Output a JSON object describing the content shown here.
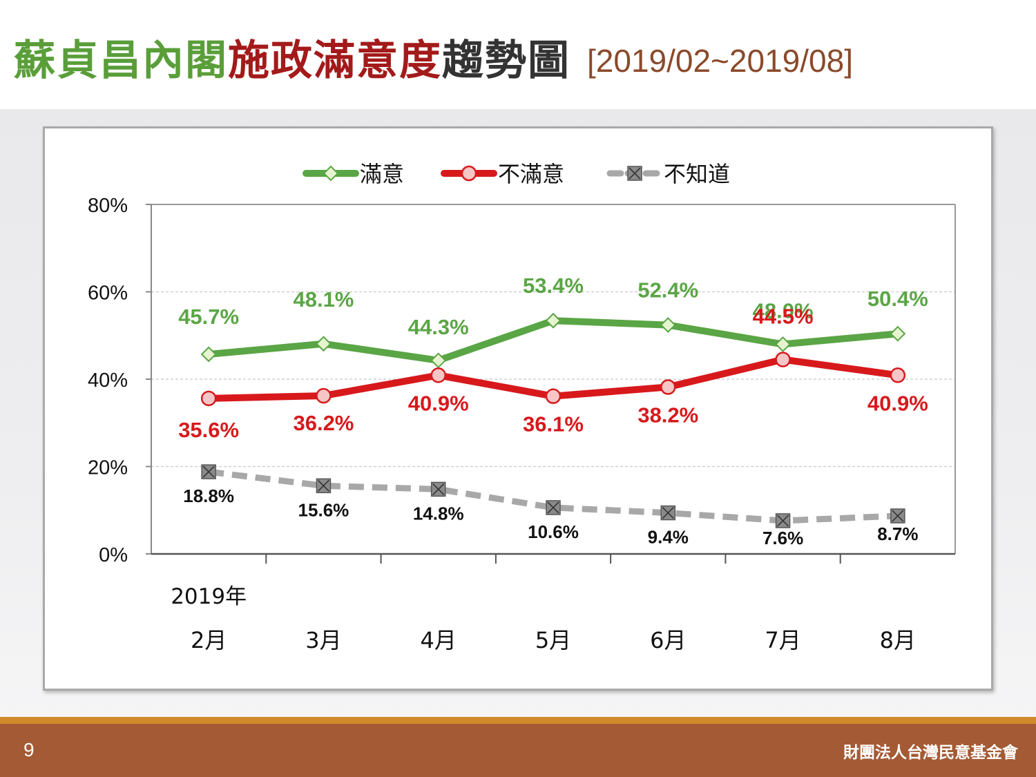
{
  "slide": {
    "title_part1": "蘇貞昌內閣",
    "title_part2": "施政滿意度",
    "title_part3": "趨勢圖",
    "title_range": "[2019/02~2019/08]",
    "page_number": "9",
    "organization": "財團法人台灣民意基金會"
  },
  "colors": {
    "satisfied": "#5aa545",
    "dissatisfied": "#d7191c",
    "unknown": "#a8a8a8",
    "dissatisfied_marker_fill": "#f6c6c6",
    "satisfied_marker_fill": "#e6f5d0",
    "unknown_marker_fill": "#8a8a8a"
  },
  "chart_data": {
    "type": "line",
    "year_label": "2019年",
    "categories": [
      "2月",
      "3月",
      "4月",
      "5月",
      "6月",
      "7月",
      "8月"
    ],
    "ylim": [
      0,
      80
    ],
    "yticks": [
      0,
      20,
      40,
      60,
      80
    ],
    "ytick_labels": [
      "0%",
      "20%",
      "40%",
      "60%",
      "80%"
    ],
    "grid": "horizontal dashed",
    "legend_position": "top",
    "series": [
      {
        "name": "滿意",
        "values": [
          45.7,
          48.1,
          44.3,
          53.4,
          52.4,
          48.0,
          50.4
        ],
        "labels": [
          "45.7%",
          "48.1%",
          "44.3%",
          "53.4%",
          "52.4%",
          "48.0%",
          "50.4%"
        ],
        "marker": "diamond",
        "line_style": "solid"
      },
      {
        "name": "不滿意",
        "values": [
          35.6,
          36.2,
          40.9,
          36.1,
          38.2,
          44.5,
          40.9
        ],
        "labels": [
          "35.6%",
          "36.2%",
          "40.9%",
          "36.1%",
          "38.2%",
          "44.5%",
          "40.9%"
        ],
        "marker": "circle",
        "line_style": "solid"
      },
      {
        "name": "不知道",
        "values": [
          18.8,
          15.6,
          14.8,
          10.6,
          9.4,
          7.6,
          8.7
        ],
        "labels": [
          "18.8%",
          "15.6%",
          "14.8%",
          "10.6%",
          "9.4%",
          "7.6%",
          "8.7%"
        ],
        "marker": "boxed-x",
        "line_style": "dashed"
      }
    ]
  }
}
